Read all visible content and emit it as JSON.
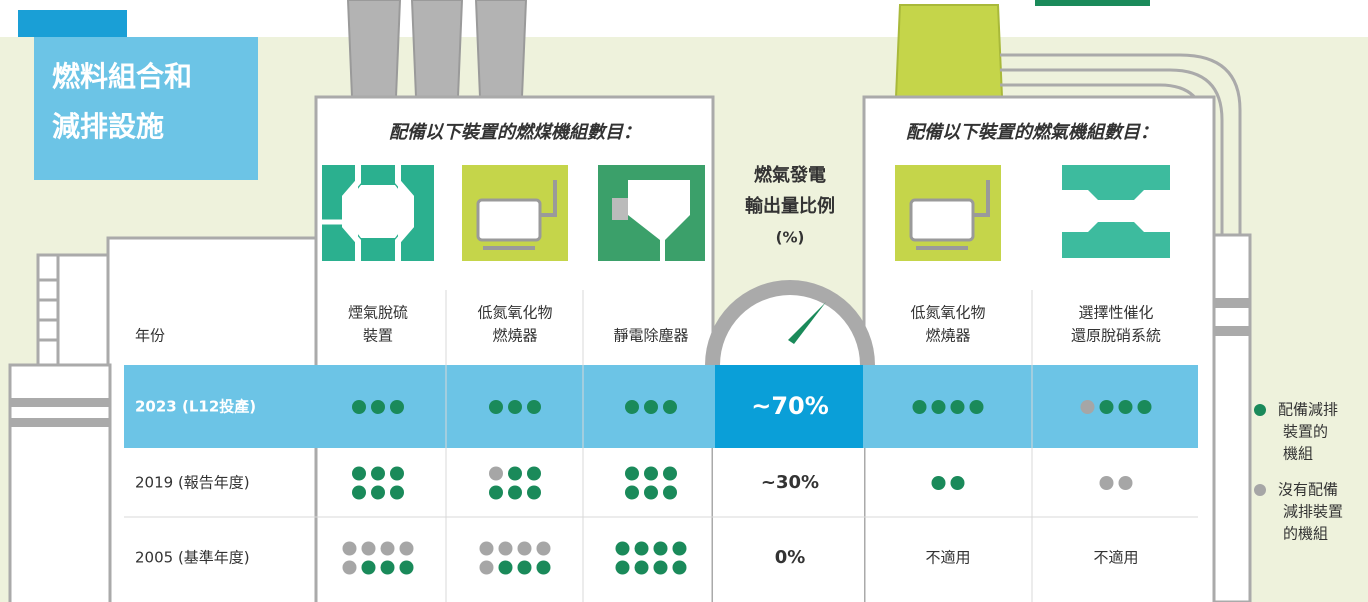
{
  "title": [
    "燃料組合和",
    "減排設施"
  ],
  "year_header": "年份",
  "coal": {
    "heading": "配備以下裝置的燃煤機組數目：",
    "columns": [
      [
        "煙氣脫硫",
        "裝置"
      ],
      [
        "低氮氧化物",
        "燃燒器"
      ],
      [
        "靜電除塵器"
      ]
    ]
  },
  "output": {
    "heading": [
      "燃氣發電",
      "輸出量比例",
      "(%)"
    ]
  },
  "gas": {
    "heading": "配備以下裝置的燃氣機組數目：",
    "columns": [
      [
        "低氮氧化物",
        "燃燒器"
      ],
      [
        "選擇性催化",
        "還原脫硝系統"
      ]
    ]
  },
  "colors": {
    "equipped": "#1a8a5a",
    "not_equipped": "#a6a6a6"
  },
  "rows": [
    {
      "year": "2023 (L12投產)",
      "coal": [
        {
          "equipped": 3
        },
        {
          "equipped": 3
        },
        {
          "equipped": 3
        }
      ],
      "output": "~70%",
      "gas": [
        {
          "equipped": 4
        },
        {
          "not_equipped": 1,
          "equipped": 3
        }
      ]
    },
    {
      "year": "2019 (報告年度)",
      "coal": [
        {
          "equipped": 6
        },
        {
          "not_equipped": 1,
          "equipped": 5
        },
        {
          "equipped": 6
        }
      ],
      "output": "~30%",
      "gas": [
        {
          "equipped": 2
        },
        {
          "not_equipped": 2
        }
      ]
    },
    {
      "year": "2005 (基準年度)",
      "coal": [
        {
          "not_equipped": 5,
          "equipped": 3
        },
        {
          "not_equipped": 5,
          "equipped": 3
        },
        {
          "equipped": 8
        }
      ],
      "output": "0%",
      "gas": [
        "不適用",
        "不適用"
      ]
    }
  ],
  "legend": [
    {
      "lines": [
        "配備減排",
        "裝置的",
        "機組"
      ]
    },
    {
      "lines": [
        "沒有配備",
        "減排裝置",
        "的機組"
      ]
    }
  ]
}
